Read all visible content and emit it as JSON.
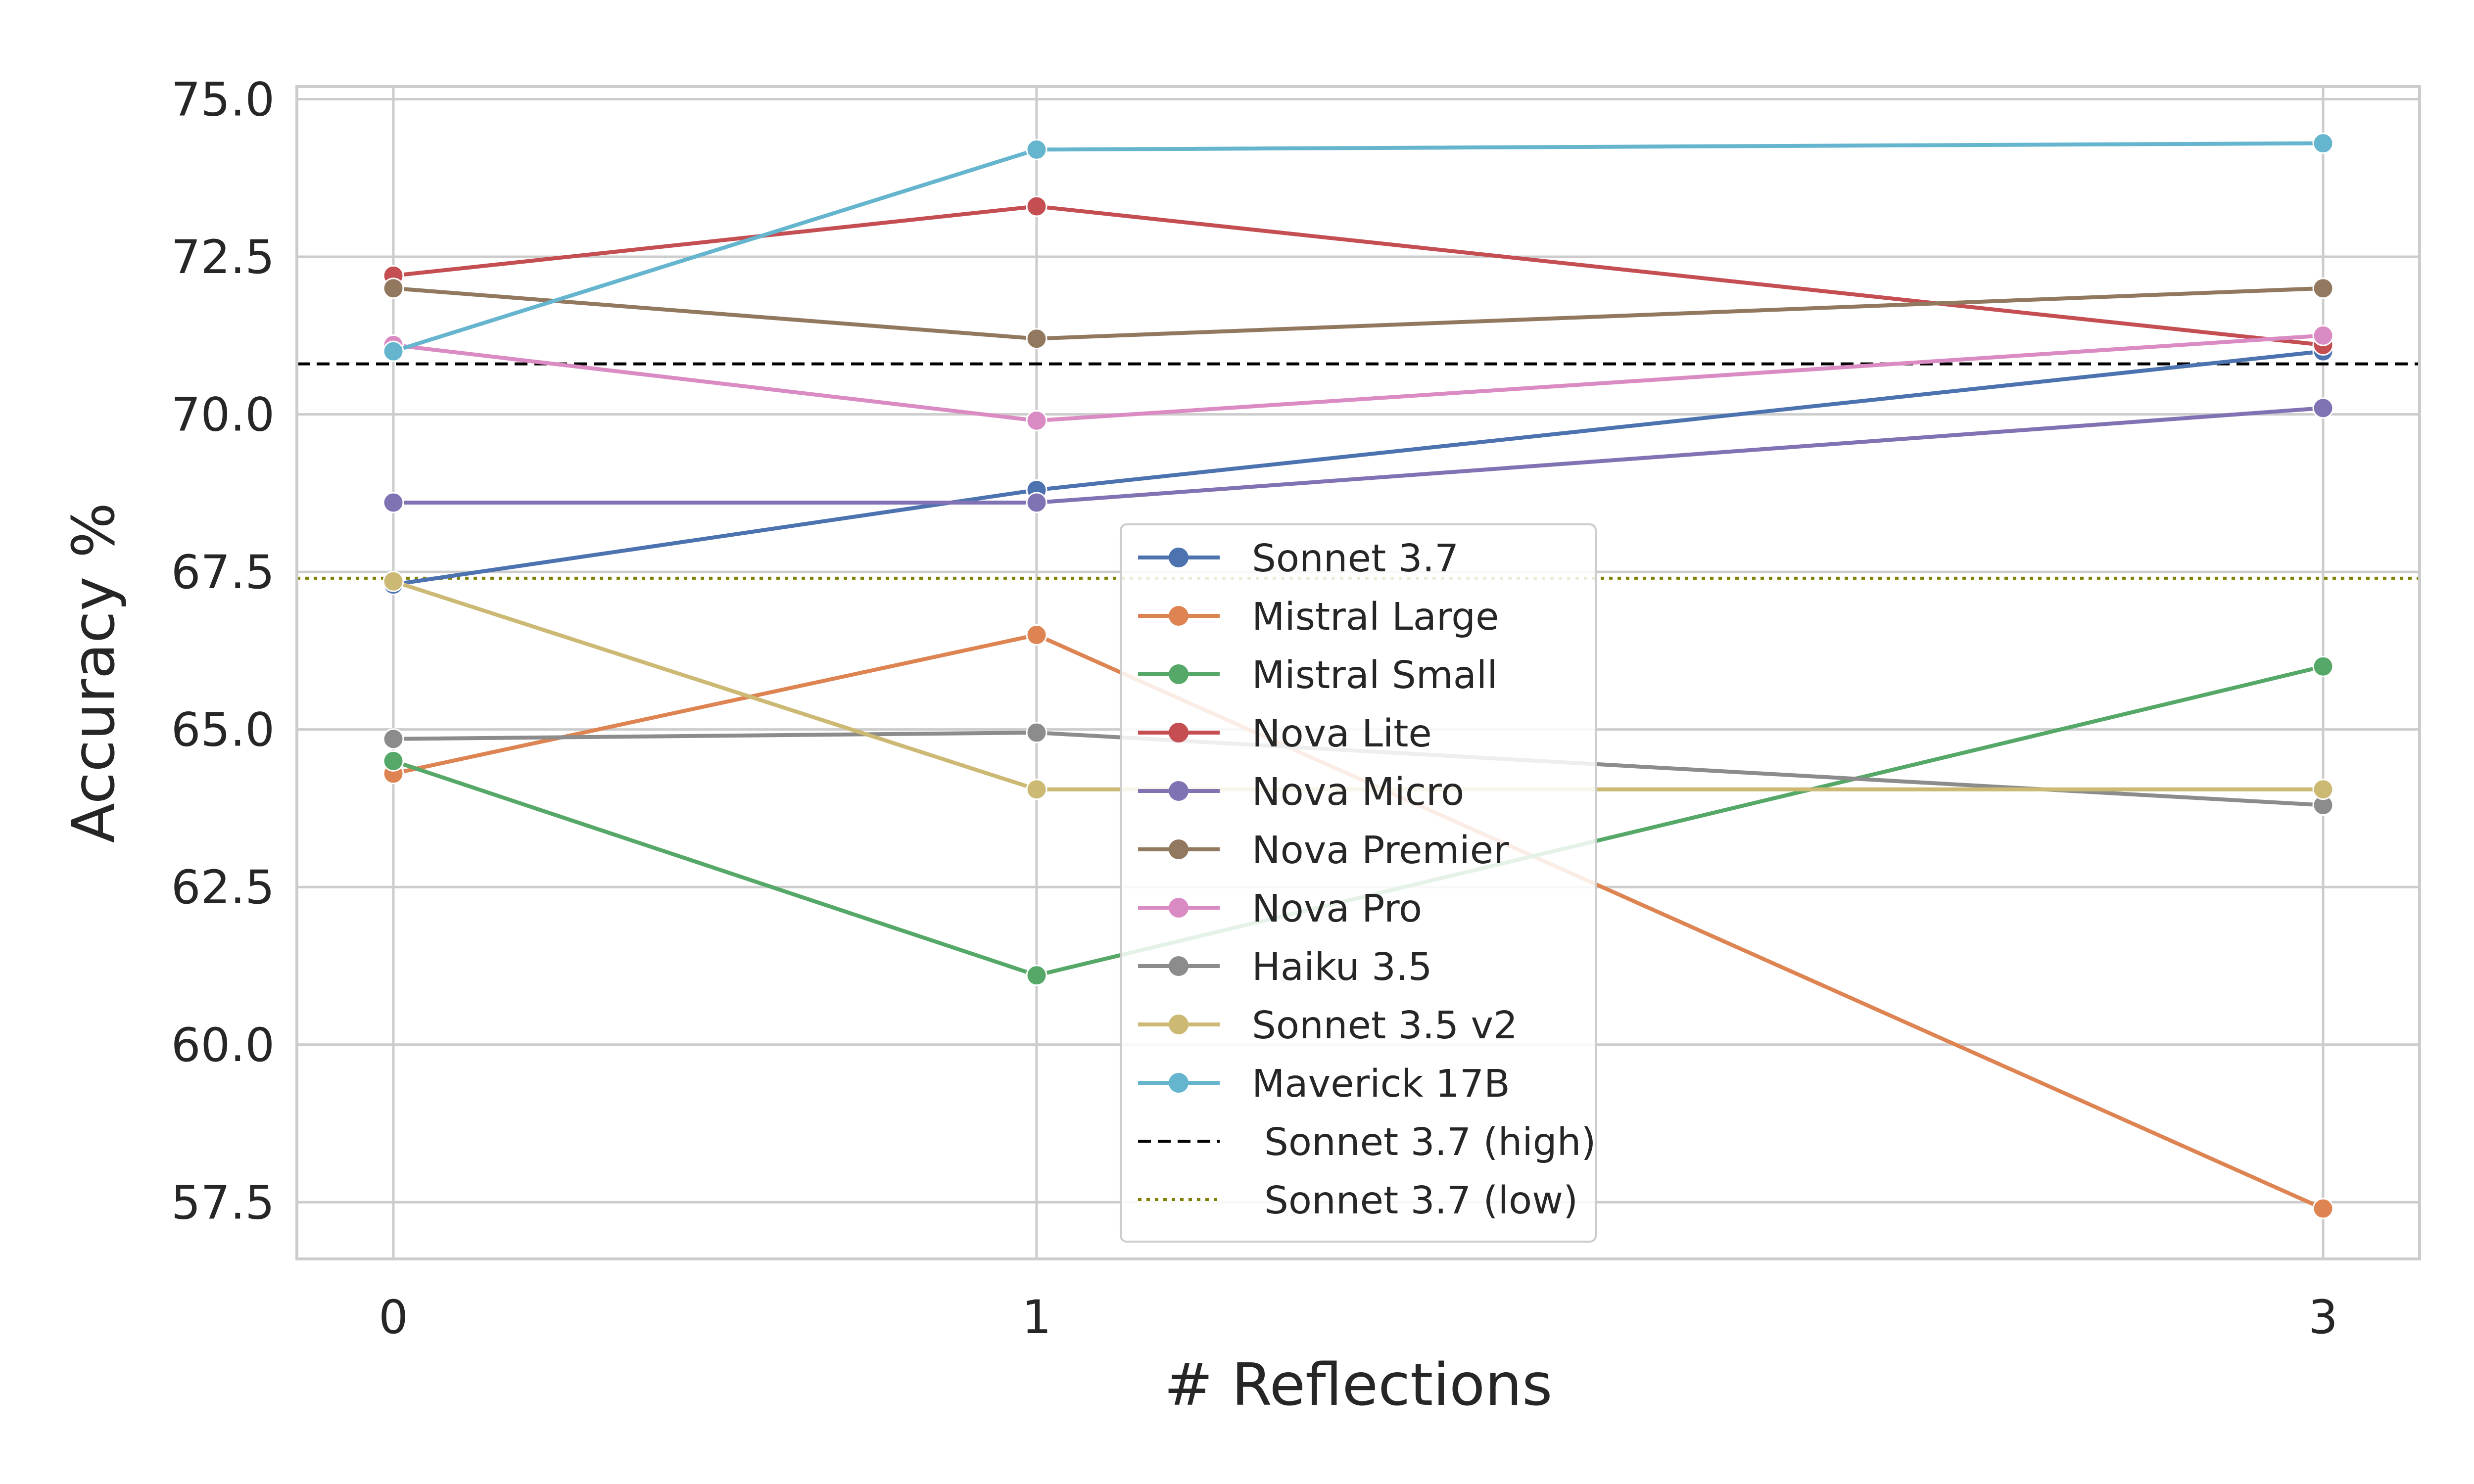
{
  "chart_data": {
    "type": "line",
    "title": "",
    "xlabel": "# Reflections",
    "ylabel": "Accuracy %",
    "x": [
      0,
      1,
      3
    ],
    "x_tick_labels": [
      "0",
      "1",
      "3"
    ],
    "xlim": [
      -0.15,
      3.15
    ],
    "ylim": [
      56.6,
      75.2
    ],
    "y_ticks": [
      57.5,
      60.0,
      62.5,
      65.0,
      67.5,
      70.0,
      72.5,
      75.0
    ],
    "y_tick_labels": [
      "57.5",
      "60.0",
      "62.5",
      "65.0",
      "67.5",
      "70.0",
      "72.5",
      "75.0"
    ],
    "grid": true,
    "legend_position": "center",
    "series": [
      {
        "name": "Sonnet 3.7",
        "color": "#4c72b0",
        "values": [
          67.3,
          68.8,
          71.0
        ]
      },
      {
        "name": "Mistral Large",
        "color": "#dd8452",
        "values": [
          64.3,
          66.5,
          57.4
        ]
      },
      {
        "name": "Mistral Small",
        "color": "#55a868",
        "values": [
          64.5,
          61.1,
          66.0
        ]
      },
      {
        "name": "Nova Lite",
        "color": "#c44e52",
        "values": [
          72.2,
          73.3,
          71.1
        ]
      },
      {
        "name": "Nova Micro",
        "color": "#8172b3",
        "values": [
          68.6,
          68.6,
          70.1
        ]
      },
      {
        "name": "Nova Premier",
        "color": "#937860",
        "values": [
          72.0,
          71.2,
          72.0
        ]
      },
      {
        "name": "Nova Pro",
        "color": "#da8bc3",
        "values": [
          71.1,
          69.9,
          71.25
        ]
      },
      {
        "name": "Haiku 3.5",
        "color": "#8c8c8c",
        "values": [
          64.85,
          64.95,
          63.8
        ]
      },
      {
        "name": "Sonnet 3.5 v2",
        "color": "#ccb974",
        "values": [
          67.35,
          64.05,
          64.05
        ]
      },
      {
        "name": "Maverick 17B",
        "color": "#64b5cd",
        "values": [
          71.0,
          74.2,
          74.3
        ]
      }
    ],
    "reference_lines": [
      {
        "name": "Sonnet 3.7 (high)",
        "value": 70.8,
        "color": "#000000",
        "style": "dashed"
      },
      {
        "name": "Sonnet 3.7 (low)",
        "value": 67.4,
        "color": "#808000",
        "style": "dotted"
      }
    ]
  }
}
